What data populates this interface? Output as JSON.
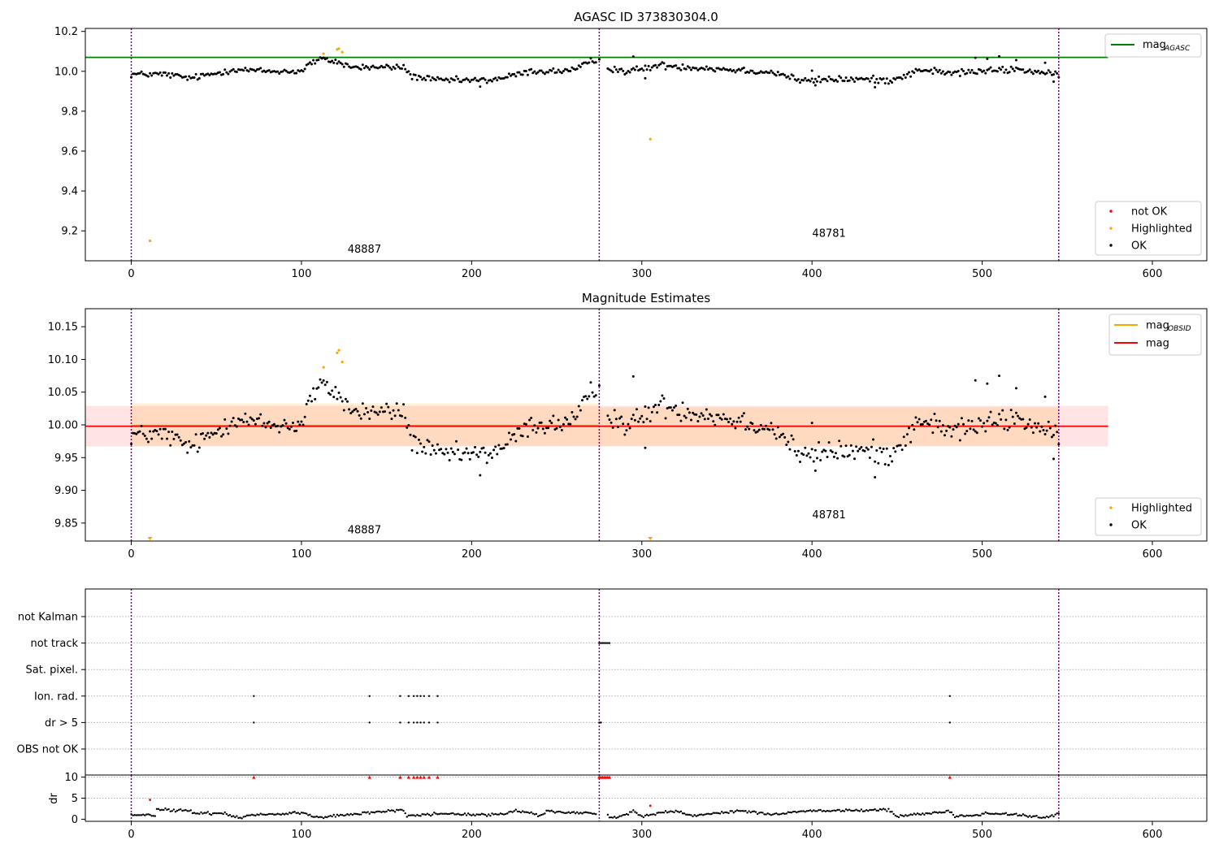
{
  "chart_data": [
    {
      "type": "scatter",
      "title": "AGASC ID 373830304.0",
      "xlabel": "",
      "ylabel": "",
      "xlim": [
        -27,
        632
      ],
      "ylim": [
        9.05,
        10.215
      ],
      "xticks": [
        0,
        100,
        200,
        300,
        400,
        500,
        600
      ],
      "yticks": [
        9.2,
        9.4,
        9.6,
        9.8,
        10.0,
        10.2
      ],
      "ytick_labels": [
        "9.2",
        "9.4",
        "9.6",
        "9.8",
        "10.0",
        "10.2"
      ],
      "grid": false,
      "vlines": [
        0,
        275,
        545
      ],
      "obsid_labels": [
        {
          "text": "48887",
          "x": 137,
          "y": 9.09
        },
        {
          "text": "48781",
          "x": 410,
          "y": 9.17
        }
      ],
      "hlines": [
        {
          "name": "mag_AGASC",
          "value": 10.07,
          "color": "#008000",
          "x_end": 574
        }
      ],
      "legend_lines": {
        "position": "upper right",
        "entries": [
          {
            "label": "mag",
            "sub": "AGASC",
            "color": "#008000"
          }
        ]
      },
      "legend_points": {
        "position": "lower right",
        "entries": [
          {
            "label": "not OK",
            "color": "#ff0000"
          },
          {
            "label": "Highlighted",
            "color": "#ffa500"
          },
          {
            "label": "OK",
            "color": "#000000"
          }
        ]
      },
      "highlighted": [
        [
          11,
          9.15
        ],
        [
          113,
          10.088
        ],
        [
          121,
          10.11
        ],
        [
          122,
          10.114
        ],
        [
          124,
          10.096
        ],
        [
          305,
          9.66
        ]
      ],
      "ok_series": {
        "segments": [
          {
            "x0": 0,
            "x1": 273,
            "step": 1,
            "knots": [
              [
                0,
                9.985
              ],
              [
                20,
                9.985
              ],
              [
                35,
                9.965
              ],
              [
                50,
                9.99
              ],
              [
                60,
                10.01
              ],
              [
                80,
                10.0
              ],
              [
                100,
                10.0
              ],
              [
                105,
                10.04
              ],
              [
                112,
                10.06
              ],
              [
                120,
                10.05
              ],
              [
                130,
                10.02
              ],
              [
                150,
                10.02
              ],
              [
                160,
                10.02
              ],
              [
                165,
                9.975
              ],
              [
                180,
                9.955
              ],
              [
                200,
                9.955
              ],
              [
                210,
                9.955
              ],
              [
                220,
                9.97
              ],
              [
                235,
                10.0
              ],
              [
                250,
                10.0
              ],
              [
                262,
                10.01
              ],
              [
                270,
                10.05
              ],
              [
                273,
                10.05
              ]
            ],
            "jitter": 0.011
          },
          {
            "x0": 280,
            "x1": 545,
            "step": 1,
            "knots": [
              [
                280,
                10.02
              ],
              [
                290,
                10.0
              ],
              [
                300,
                10.01
              ],
              [
                310,
                10.03
              ],
              [
                330,
                10.02
              ],
              [
                350,
                10.01
              ],
              [
                370,
                10.0
              ],
              [
                380,
                9.99
              ],
              [
                395,
                9.95
              ],
              [
                410,
                9.96
              ],
              [
                430,
                9.96
              ],
              [
                445,
                9.955
              ],
              [
                455,
                9.98
              ],
              [
                465,
                10.01
              ],
              [
                480,
                9.99
              ],
              [
                500,
                10.0
              ],
              [
                520,
                10.01
              ],
              [
                535,
                9.995
              ],
              [
                545,
                9.975
              ]
            ],
            "jitter": 0.012
          }
        ]
      },
      "ok_extra": [
        [
          275,
          10.06
        ],
        [
          295,
          10.074
        ],
        [
          302,
          9.965
        ],
        [
          400,
          10.003
        ],
        [
          402,
          9.93
        ],
        [
          437,
          9.92
        ],
        [
          496,
          10.068
        ],
        [
          503,
          10.063
        ],
        [
          510,
          10.075
        ],
        [
          520,
          10.056
        ],
        [
          537,
          10.043
        ],
        [
          542,
          9.948
        ],
        [
          205,
          9.923
        ]
      ]
    },
    {
      "type": "scatter",
      "title": "Magnitude Estimates",
      "xlabel": "",
      "ylabel": "",
      "xlim": [
        -27,
        632
      ],
      "ylim": [
        9.8225,
        10.1775
      ],
      "xticks": [
        0,
        100,
        200,
        300,
        400,
        500,
        600
      ],
      "yticks": [
        9.85,
        9.9,
        9.95,
        10.0,
        10.05,
        10.1,
        10.15
      ],
      "ytick_labels": [
        "9.85",
        "9.90",
        "9.95",
        "10.00",
        "10.05",
        "10.10",
        "10.15"
      ],
      "grid": false,
      "vlines": [
        0,
        275,
        545
      ],
      "obsid_labels": [
        {
          "text": "48887",
          "x": 137,
          "y": 9.834
        },
        {
          "text": "48781",
          "x": 410,
          "y": 9.857
        }
      ],
      "bands": [
        {
          "name": "mag band",
          "x0": -27,
          "x1": 574,
          "y0": 9.967,
          "y1": 10.029,
          "color": "#ff3040",
          "opacity": 0.13
        },
        {
          "name": "obsid band 48887",
          "x0": 0,
          "x1": 275,
          "y0": 9.968,
          "y1": 10.033,
          "color": "#ffa500",
          "opacity": 0.16
        },
        {
          "name": "obsid band 48781",
          "x0": 275,
          "x1": 545,
          "y0": 9.968,
          "y1": 10.027,
          "color": "#ffa500",
          "opacity": 0.16
        }
      ],
      "hlines": [
        {
          "name": "mag_OBSID 48887",
          "value": 9.999,
          "color": "#ffa500",
          "x_start": 0,
          "x_end": 275
        },
        {
          "name": "mag_OBSID 48781",
          "value": 9.998,
          "color": "#ffa500",
          "x_start": 275,
          "x_end": 545
        },
        {
          "name": "mag",
          "value": 9.998,
          "color": "#ff0000",
          "x_start": -27,
          "x_end": 574
        }
      ],
      "legend_lines": {
        "position": "upper right",
        "entries": [
          {
            "label": "mag",
            "sub": "OBSID",
            "color": "#ffa500"
          },
          {
            "label": "mag",
            "sub": "",
            "color": "#ff0000"
          }
        ]
      },
      "legend_points": {
        "position": "lower right",
        "entries": [
          {
            "label": "Highlighted",
            "color": "#ffa500"
          },
          {
            "label": "OK",
            "color": "#000000"
          }
        ]
      },
      "highlighted": [
        [
          113,
          10.088
        ],
        [
          121,
          10.11
        ],
        [
          122,
          10.114
        ],
        [
          124,
          10.096
        ]
      ],
      "highlighted_off_scale": [
        [
          11,
          9.8225
        ],
        [
          305,
          9.8225
        ]
      ],
      "ok_series": {
        "ref": 0
      },
      "ok_extra": [
        [
          275,
          10.06
        ],
        [
          295,
          10.074
        ],
        [
          302,
          9.965
        ],
        [
          400,
          10.003
        ],
        [
          402,
          9.93
        ],
        [
          437,
          9.92
        ],
        [
          496,
          10.068
        ],
        [
          503,
          10.063
        ],
        [
          510,
          10.075
        ],
        [
          520,
          10.056
        ],
        [
          537,
          10.043
        ],
        [
          542,
          9.948
        ],
        [
          205,
          9.923
        ]
      ]
    },
    {
      "type": "scatter",
      "title": "",
      "xlabel": "",
      "ylabel": "",
      "xlim": [
        -27,
        632
      ],
      "flag_rows": [
        "not Kalman",
        "not track",
        "Sat. pixel.",
        "Ion. rad.",
        "dr > 5",
        "OBS not OK"
      ],
      "grid": true,
      "vlines": [
        0,
        275,
        545
      ],
      "flags": {
        "not track": [
          275,
          276,
          277,
          278,
          279,
          280,
          281
        ],
        "Ion. rad.": [
          72,
          140,
          158,
          163,
          166,
          168,
          170,
          172,
          175,
          180,
          481
        ],
        "dr > 5": [
          72,
          140,
          158,
          163,
          166,
          168,
          170,
          172,
          175,
          180,
          275,
          276,
          481
        ]
      }
    },
    {
      "type": "scatter",
      "title": "",
      "xlabel": "",
      "ylabel": "dr",
      "xlim": [
        -27,
        632
      ],
      "ylim": [
        -0.5,
        10.5
      ],
      "xticks": [
        0,
        100,
        200,
        300,
        400,
        500,
        600
      ],
      "yticks": [
        0,
        5,
        10
      ],
      "ytick_labels": [
        "0",
        "5",
        "10"
      ],
      "grid": true,
      "vlines": [
        0,
        275,
        545
      ],
      "clipped_value": 10,
      "clipped_x": [
        72,
        140,
        158,
        163,
        166,
        168,
        170,
        172,
        175,
        180,
        275,
        276,
        277,
        278,
        279,
        280,
        281,
        481
      ],
      "notok_points": [
        [
          11,
          4.6
        ],
        [
          305,
          3.2
        ]
      ],
      "dr_series": {
        "segments": [
          {
            "x0": 0,
            "x1": 273,
            "step": 1,
            "knots": [
              [
                0,
                1.0
              ],
              [
                14,
                0.9
              ],
              [
                15,
                2.3
              ],
              [
                35,
                2.0
              ],
              [
                36,
                1.3
              ],
              [
                55,
                1.5
              ],
              [
                58,
                0.8
              ],
              [
                65,
                0.4
              ],
              [
                70,
                1.0
              ],
              [
                100,
                1.5
              ],
              [
                110,
                0.4
              ],
              [
                130,
                1.2
              ],
              [
                160,
                2.3
              ],
              [
                162,
                0.7
              ],
              [
                180,
                1.3
              ],
              [
                200,
                1.1
              ],
              [
                220,
                1.1
              ],
              [
                225,
                2.0
              ],
              [
                235,
                1.5
              ],
              [
                240,
                0.6
              ],
              [
                245,
                2.0
              ],
              [
                255,
                1.6
              ],
              [
                273,
                1.4
              ]
            ],
            "jitter": 0.22
          },
          {
            "x0": 280,
            "x1": 545,
            "step": 1,
            "knots": [
              [
                280,
                1.0
              ],
              [
                283,
                0.4
              ],
              [
                290,
                1.0
              ],
              [
                295,
                1.9
              ],
              [
                300,
                0.6
              ],
              [
                310,
                1.5
              ],
              [
                320,
                1.9
              ],
              [
                330,
                0.9
              ],
              [
                360,
                2.0
              ],
              [
                380,
                1.0
              ],
              [
                390,
                1.7
              ],
              [
                400,
                2.0
              ],
              [
                410,
                2.0
              ],
              [
                420,
                2.1
              ],
              [
                445,
                2.2
              ],
              [
                450,
                0.6
              ],
              [
                465,
                1.2
              ],
              [
                480,
                2.0
              ],
              [
                484,
                0.7
              ],
              [
                495,
                0.8
              ],
              [
                500,
                1.4
              ],
              [
                520,
                1.2
              ],
              [
                530,
                0.6
              ],
              [
                538,
                0.4
              ],
              [
                545,
                1.3
              ]
            ],
            "jitter": 0.22
          }
        ]
      }
    }
  ]
}
